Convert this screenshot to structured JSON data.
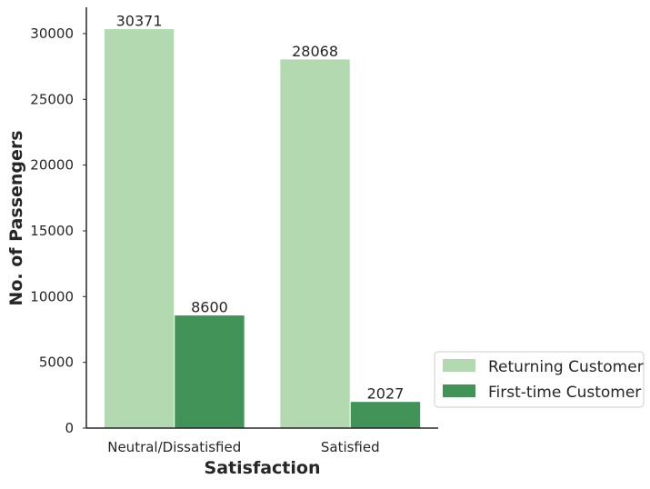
{
  "chart_data": {
    "type": "bar",
    "xlabel": "Satisfaction",
    "ylabel": "No. of Passengers",
    "categories": [
      "Neutral/Dissatisfied",
      "Satisfied"
    ],
    "series": [
      {
        "name": "Returning Customer",
        "values": [
          30371,
          28068
        ],
        "color": "#b3d9b1"
      },
      {
        "name": "First-time Customer",
        "values": [
          8600,
          2027
        ],
        "color": "#419357"
      }
    ],
    "ylim": [
      0,
      32000
    ],
    "yticks": [
      0,
      5000,
      10000,
      15000,
      20000,
      25000,
      30000
    ],
    "data_labels": [
      "30371",
      "8600",
      "28068",
      "2027"
    ],
    "legend_position": "right",
    "grid": false
  }
}
